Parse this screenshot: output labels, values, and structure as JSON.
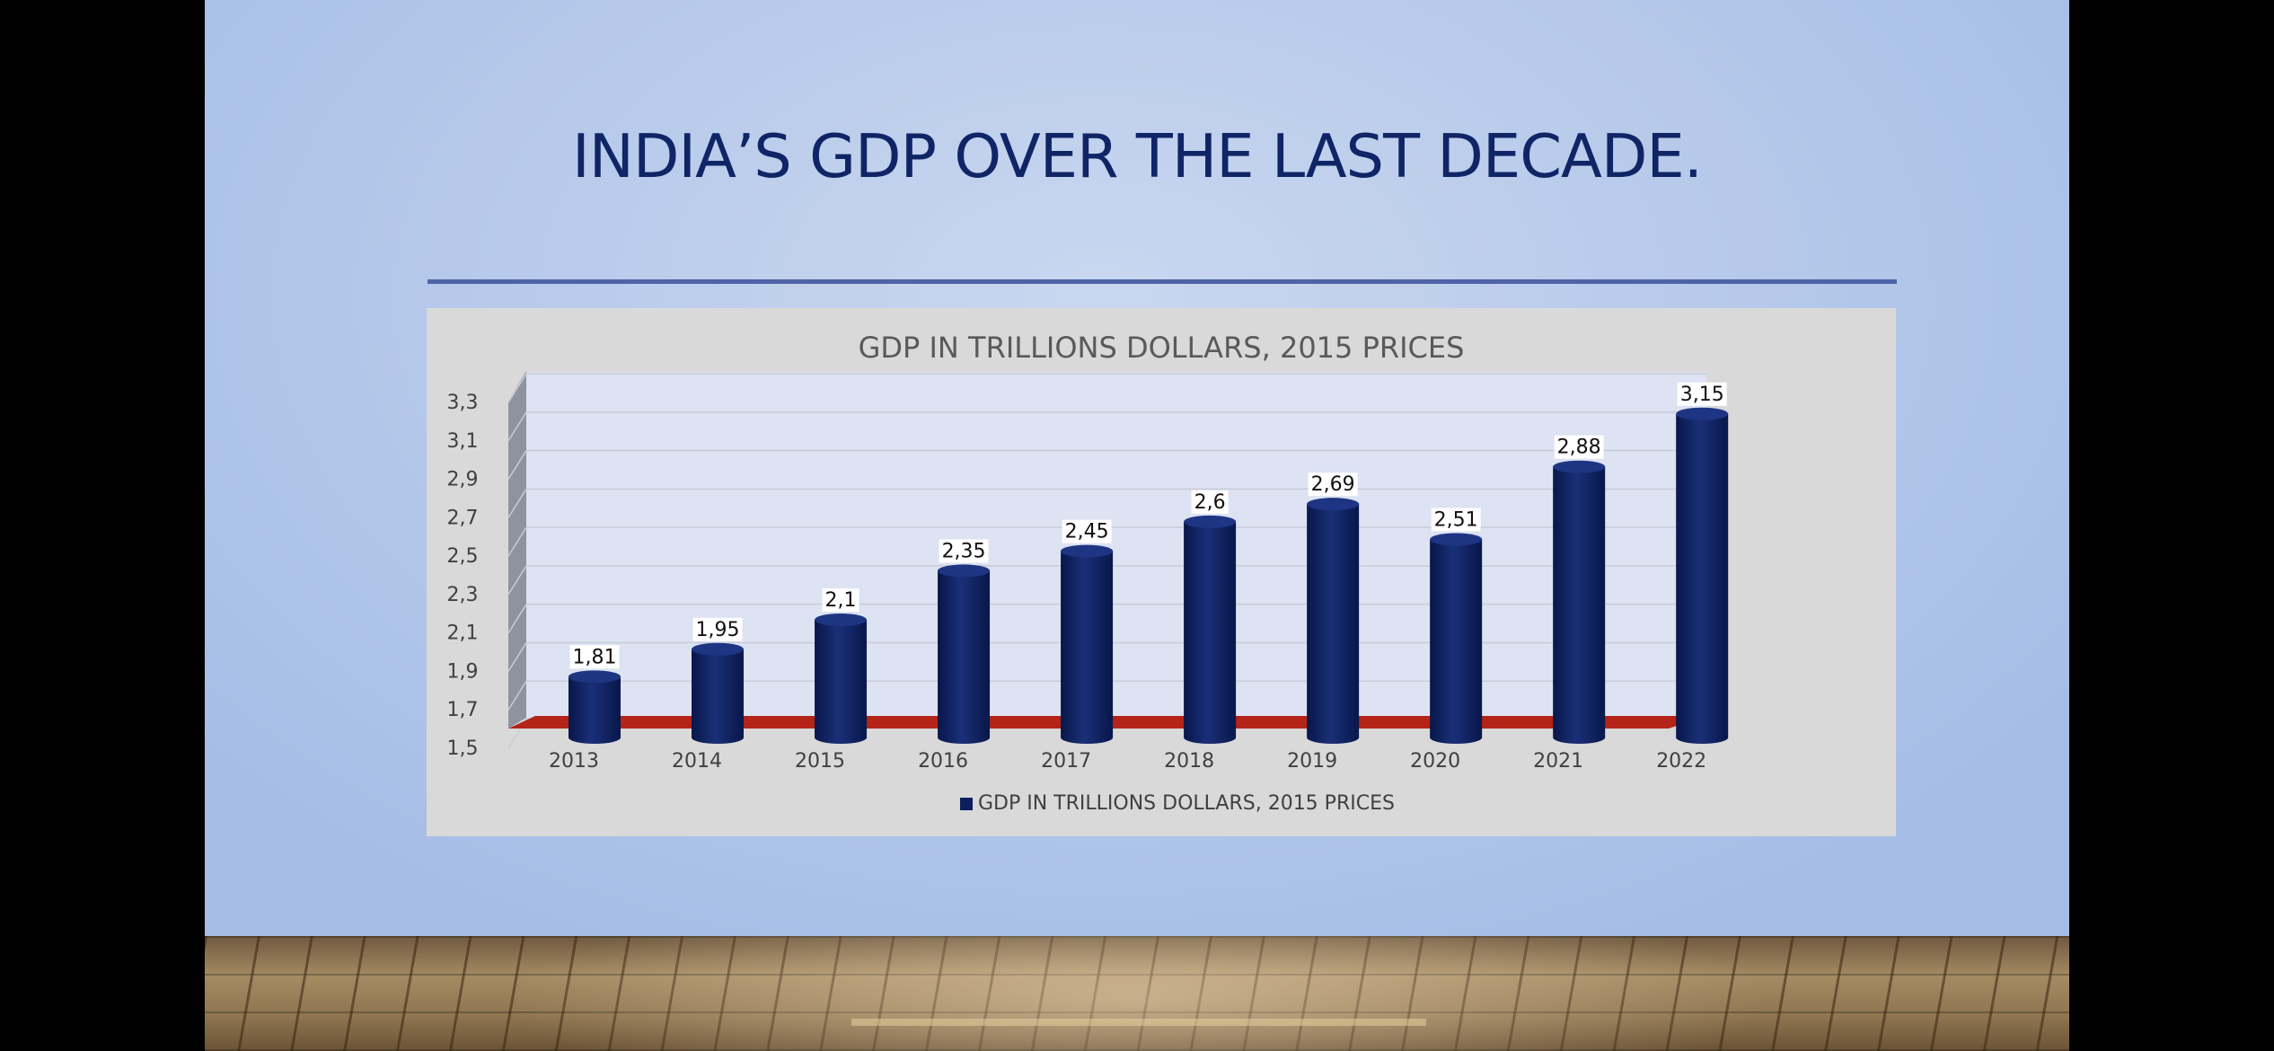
{
  "slide": {
    "title": "INDIA’S GDP OVER THE LAST DECADE."
  },
  "colors": {
    "bar": "#0c1f5c",
    "floor": "#b52418",
    "plot_bg": "#dde3f3",
    "side_wall": "#8e939d",
    "panel": "#d9d9d9"
  },
  "chart_data": {
    "type": "bar",
    "title": "GDP IN TRILLIONS DOLLARS, 2015 PRICES",
    "categories": [
      "2013",
      "2014",
      "2015",
      "2016",
      "2017",
      "2018",
      "2019",
      "2020",
      "2021",
      "2022"
    ],
    "series": [
      {
        "name": "GDP IN TRILLIONS DOLLARS, 2015 PRICES",
        "values": [
          1.81,
          1.95,
          2.1,
          2.35,
          2.45,
          2.6,
          2.69,
          2.51,
          2.88,
          3.15
        ],
        "labels": [
          "1,81",
          "1,95",
          "2,1",
          "2,35",
          "2,45",
          "2,6",
          "2,69",
          "2,51",
          "2,88",
          "3,15"
        ]
      }
    ],
    "ylim": [
      1.5,
      3.3
    ],
    "yticks": [
      1.5,
      1.7,
      1.9,
      2.1,
      2.3,
      2.5,
      2.7,
      2.9,
      3.1,
      3.3
    ],
    "ytick_labels": [
      "1,5",
      "1,7",
      "1,9",
      "2,1",
      "2,3",
      "2,5",
      "2,7",
      "2,9",
      "3,1",
      "3,3"
    ],
    "xlabel": "",
    "ylabel": "",
    "grid": true,
    "legend": "bottom"
  }
}
